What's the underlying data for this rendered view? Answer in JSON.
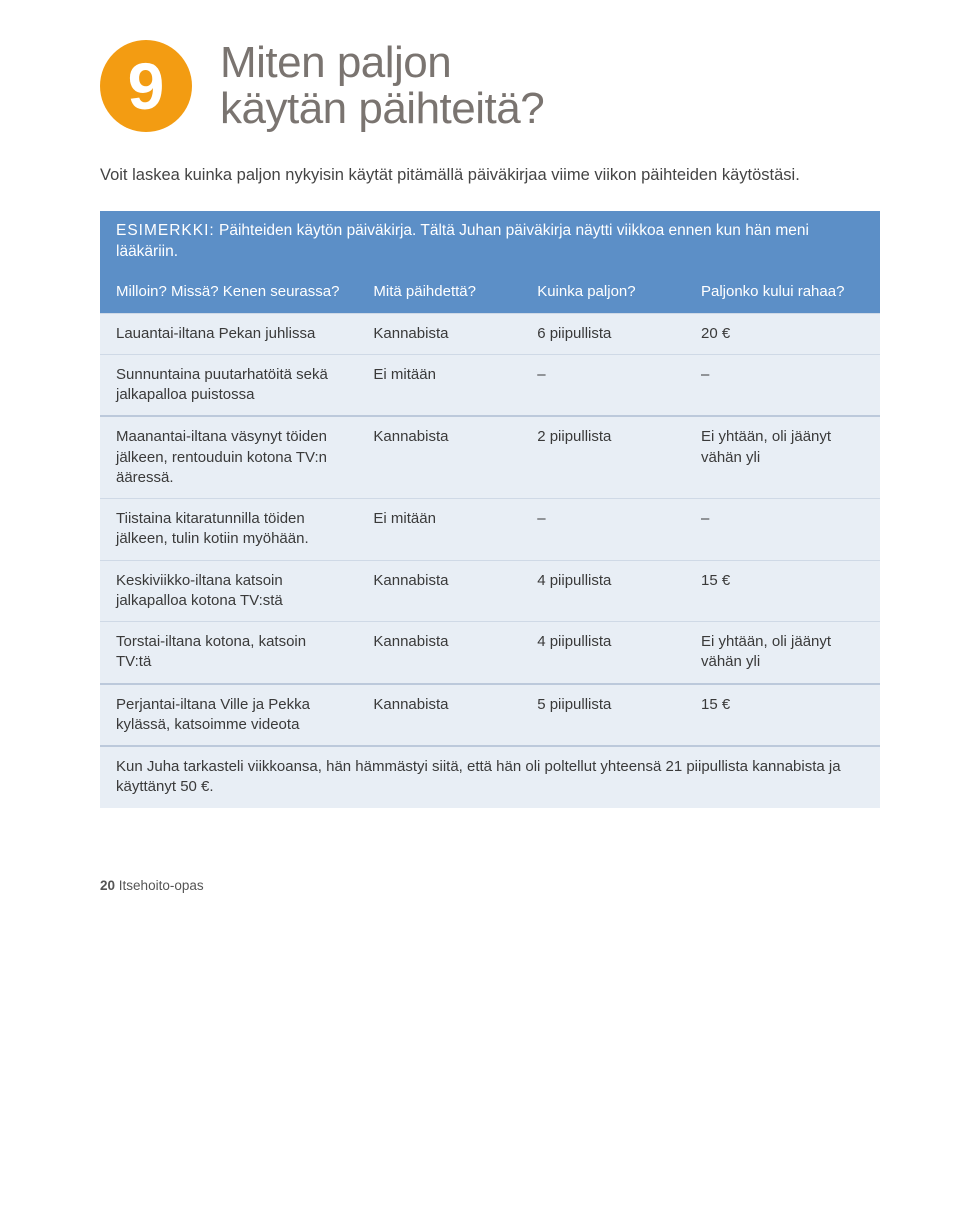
{
  "badge_number": "9",
  "title_line1": "Miten paljon",
  "title_line2": "käytän päihteitä?",
  "intro": "Voit laskea kuinka paljon nykyisin käytät pitämällä päiväkirjaa viime viikon päihteiden käytöstäsi.",
  "example": {
    "label": "ESIMERKKI:",
    "text": "Päihteiden käytön päiväkirja. Tältä Juhan päiväkirja näytti viikkoa ennen kun hän meni lääkäriin."
  },
  "table": {
    "headers": {
      "c1": "Milloin? Missä? Kenen seurassa?",
      "c2": "Mitä päihdettä?",
      "c3": "Kuinka paljon?",
      "c4": "Paljonko kului rahaa?"
    },
    "rows": [
      {
        "when": "Lauantai-iltana Pekan juhlissa",
        "what": "Kannabista",
        "how_much": "6 piipullista",
        "cost": "20 €"
      },
      {
        "when": "Sunnuntaina puutarhatöitä sekä jalkapalloa puistossa",
        "what": "Ei mitään",
        "how_much": "–",
        "cost": "–"
      },
      {
        "when": "Maanantai-iltana väsynyt töiden jälkeen, rentouduin kotona TV:n ääressä.",
        "what": "Kannabista",
        "how_much": "2 piipullista",
        "cost": "Ei yhtään, oli jäänyt vähän yli",
        "sep": true
      },
      {
        "when": "Tiistaina kitaratunnilla töiden jälkeen, tulin kotiin myöhään.",
        "what": "Ei mitään",
        "how_much": "–",
        "cost": "–"
      },
      {
        "when": "Keskiviikko-iltana katsoin jalkapalloa kotona TV:stä",
        "what": "Kannabista",
        "how_much": "4 piipullista",
        "cost": "15 €"
      },
      {
        "when": "Torstai-iltana kotona, katsoin TV:tä",
        "what": "Kannabista",
        "how_much": "4 piipullista",
        "cost": "Ei yhtään, oli jäänyt vähän yli"
      },
      {
        "when": "Perjantai-iltana Ville ja Pekka kylässä, katsoimme videota",
        "what": "Kannabista",
        "how_much": "5 piipullista",
        "cost": "15 €",
        "sep": true
      }
    ],
    "summary": "Kun Juha tarkasteli viikkoansa, hän hämmästyi siitä, että hän oli poltellut yhteensä 21 piipullista kannabista ja käyttänyt 50 €."
  },
  "footer": {
    "page": "20",
    "book": "Itsehoito-opas"
  },
  "colors": {
    "badge_bg": "#f39c12",
    "header_band_bg": "#5c8fc7",
    "box_bg": "#e8eef5",
    "title_color": "#7a7470",
    "row_border": "#cfd9e6"
  }
}
